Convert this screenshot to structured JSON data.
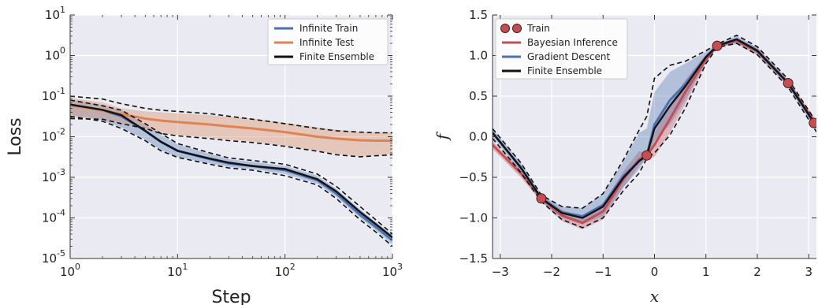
{
  "chart_data": [
    {
      "type": "line",
      "title": "",
      "xlabel": "Step",
      "ylabel": "Loss",
      "xscale": "log",
      "yscale": "log",
      "xlim": [
        1,
        1000
      ],
      "ylim": [
        1e-05,
        10
      ],
      "grid": true,
      "legend": "top-right",
      "x_ticks": [
        1,
        10,
        100,
        1000
      ],
      "y_ticks": [
        1e-05,
        0.0001,
        0.001,
        0.01,
        0.1,
        1,
        10
      ],
      "x_tick_labels": [
        {
          "base": "10",
          "exp": "0"
        },
        {
          "base": "10",
          "exp": "1"
        },
        {
          "base": "10",
          "exp": "2"
        },
        {
          "base": "10",
          "exp": "3"
        }
      ],
      "y_tick_labels": [
        {
          "base": "10",
          "exp": "-5"
        },
        {
          "base": "10",
          "exp": "-4"
        },
        {
          "base": "10",
          "exp": "-3"
        },
        {
          "base": "10",
          "exp": "-2"
        },
        {
          "base": "10",
          "exp": "-1"
        },
        {
          "base": "10",
          "exp": "0"
        },
        {
          "base": "10",
          "exp": "1"
        }
      ],
      "x": [
        1,
        2,
        3,
        5,
        7,
        10,
        20,
        30,
        50,
        100,
        200,
        300,
        500,
        700,
        1000
      ],
      "series": [
        {
          "name": "Infinite Train",
          "color": "#4c72b0",
          "values": [
            0.062,
            0.045,
            0.032,
            0.014,
            0.0075,
            0.0045,
            0.0028,
            0.0022,
            0.0019,
            0.0015,
            0.00085,
            0.0004,
            0.00012,
            6e-05,
            2.8e-05
          ],
          "band_low": [
            0.035,
            0.025,
            0.017,
            0.0085,
            0.0047,
            0.0032,
            0.0022,
            0.0018,
            0.0016,
            0.0012,
            0.0007,
            0.00033,
            0.0001,
            5e-05,
            2.2e-05
          ],
          "band_high": [
            0.085,
            0.06,
            0.045,
            0.02,
            0.011,
            0.0065,
            0.0038,
            0.0028,
            0.0024,
            0.0019,
            0.0011,
            0.00052,
            0.00016,
            8e-05,
            3.8e-05
          ]
        },
        {
          "name": "Infinite Test",
          "color": "#dd8452",
          "values": [
            0.06,
            0.045,
            0.036,
            0.028,
            0.025,
            0.023,
            0.02,
            0.018,
            0.016,
            0.013,
            0.01,
            0.009,
            0.0082,
            0.008,
            0.008
          ],
          "band_low": [
            0.03,
            0.028,
            0.022,
            0.016,
            0.012,
            0.011,
            0.0095,
            0.0085,
            0.0075,
            0.006,
            0.0045,
            0.0038,
            0.0033,
            0.0035,
            0.0038
          ],
          "band_high": [
            0.09,
            0.07,
            0.05,
            0.042,
            0.04,
            0.038,
            0.034,
            0.031,
            0.028,
            0.022,
            0.017,
            0.015,
            0.013,
            0.0128,
            0.0128
          ]
        },
        {
          "name": "Finite Ensemble",
          "color": "#111111",
          "values": [
            0.062,
            0.046,
            0.034,
            0.014,
            0.0075,
            0.0045,
            0.0029,
            0.0023,
            0.0019,
            0.0016,
            0.0009,
            0.00045,
            0.00014,
            7e-05,
            3.3e-05
          ],
          "dashed_bounds": [
            [
              0.1,
              0.085,
              0.065,
              0.05,
              0.045,
              0.042,
              0.037,
              0.032,
              0.027,
              0.021,
              0.016,
              0.014,
              0.013,
              0.0125,
              0.0125
            ],
            [
              0.028,
              0.027,
              0.021,
              0.016,
              0.012,
              0.0105,
              0.009,
              0.008,
              0.0072,
              0.0058,
              0.0044,
              0.0036,
              0.0032,
              0.0034,
              0.0036
            ],
            [
              0.08,
              0.058,
              0.045,
              0.021,
              0.012,
              0.0068,
              0.004,
              0.003,
              0.0026,
              0.0021,
              0.0012,
              0.0006,
              0.00019,
              9e-05,
              4e-05
            ],
            [
              0.032,
              0.024,
              0.016,
              0.008,
              0.0045,
              0.0031,
              0.0021,
              0.0017,
              0.0015,
              0.0011,
              0.00065,
              0.0003,
              9e-05,
              4.5e-05,
              2e-05
            ]
          ]
        }
      ]
    },
    {
      "type": "line",
      "title": "",
      "xlabel": "x",
      "ylabel": "f",
      "xlim": [
        -3.15,
        3.15
      ],
      "ylim": [
        -1.5,
        1.5
      ],
      "grid": true,
      "legend": "top-left",
      "x_ticks": [
        -3,
        -2,
        -1,
        0,
        1,
        2,
        3
      ],
      "y_ticks": [
        -1.5,
        -1.0,
        -0.5,
        0.0,
        0.5,
        1.0,
        1.5
      ],
      "x_tick_labels": [
        "−3",
        "−2",
        "−1",
        "0",
        "1",
        "2",
        "3"
      ],
      "y_tick_labels": [
        "−1.5",
        "−1.0",
        "−0.5",
        "0.0",
        "0.5",
        "1.0",
        "1.5"
      ],
      "train_points": {
        "name": "Train",
        "color": "#c44e52",
        "x": [
          -2.2,
          -0.15,
          1.22,
          2.6,
          3.1
        ],
        "y": [
          -0.76,
          -0.23,
          1.12,
          0.66,
          0.17
        ]
      },
      "x": [
        -3.15,
        -2.6,
        -2.2,
        -1.8,
        -1.4,
        -1.0,
        -0.6,
        -0.3,
        -0.15,
        0.0,
        0.3,
        0.6,
        1.0,
        1.22,
        1.6,
        2.0,
        2.6,
        3.15
      ],
      "series": [
        {
          "name": "Bayesian Inference",
          "color": "#c44e52",
          "values": [
            -0.1,
            -0.45,
            -0.76,
            -0.97,
            -1.06,
            -0.92,
            -0.52,
            -0.28,
            -0.23,
            -0.1,
            0.22,
            0.55,
            0.95,
            1.12,
            1.18,
            1.05,
            0.66,
            0.15
          ],
          "band_low": [
            -0.15,
            -0.5,
            -0.8,
            -1.04,
            -1.14,
            -1.02,
            -0.62,
            -0.36,
            -0.27,
            -0.25,
            0.05,
            0.4,
            0.9,
            1.1,
            1.14,
            1.0,
            0.62,
            0.1
          ],
          "band_high": [
            -0.05,
            -0.4,
            -0.72,
            -0.9,
            -0.98,
            -0.82,
            -0.42,
            -0.18,
            -0.2,
            0.05,
            0.4,
            0.7,
            1.02,
            1.14,
            1.22,
            1.1,
            0.7,
            0.2
          ]
        },
        {
          "name": "Gradient Descent",
          "color": "#4c72b0",
          "values": [
            0.05,
            -0.38,
            -0.76,
            -0.93,
            -0.98,
            -0.84,
            -0.48,
            -0.3,
            -0.23,
            0.15,
            0.45,
            0.65,
            0.98,
            1.12,
            1.2,
            1.06,
            0.66,
            0.12
          ],
          "band_low": [
            0.0,
            -0.44,
            -0.8,
            -1.0,
            -1.08,
            -0.98,
            -0.62,
            -0.4,
            -0.25,
            -0.05,
            0.15,
            0.45,
            0.92,
            1.1,
            1.16,
            1.02,
            0.62,
            0.07
          ],
          "band_high": [
            0.1,
            -0.32,
            -0.72,
            -0.86,
            -0.88,
            -0.7,
            -0.3,
            0.05,
            0.1,
            0.55,
            0.8,
            0.9,
            1.05,
            1.14,
            1.24,
            1.1,
            0.7,
            0.17
          ]
        },
        {
          "name": "Finite Ensemble",
          "color": "#111111",
          "values": [
            0.05,
            -0.38,
            -0.76,
            -0.94,
            -1.0,
            -0.86,
            -0.5,
            -0.3,
            -0.23,
            0.1,
            0.38,
            0.62,
            0.98,
            1.12,
            1.2,
            1.06,
            0.66,
            0.13
          ],
          "dashed_bounds": [
            [
              0.1,
              -0.32,
              -0.72,
              -0.86,
              -0.88,
              -0.7,
              -0.28,
              0.08,
              0.25,
              0.72,
              0.88,
              0.93,
              1.06,
              1.14,
              1.25,
              1.11,
              0.71,
              0.18
            ],
            [
              -0.02,
              -0.44,
              -0.8,
              -1.02,
              -1.12,
              -1.0,
              -0.66,
              -0.45,
              -0.27,
              -0.2,
              0.02,
              0.35,
              0.9,
              1.1,
              1.15,
              1.01,
              0.61,
              0.06
            ]
          ]
        }
      ]
    }
  ]
}
